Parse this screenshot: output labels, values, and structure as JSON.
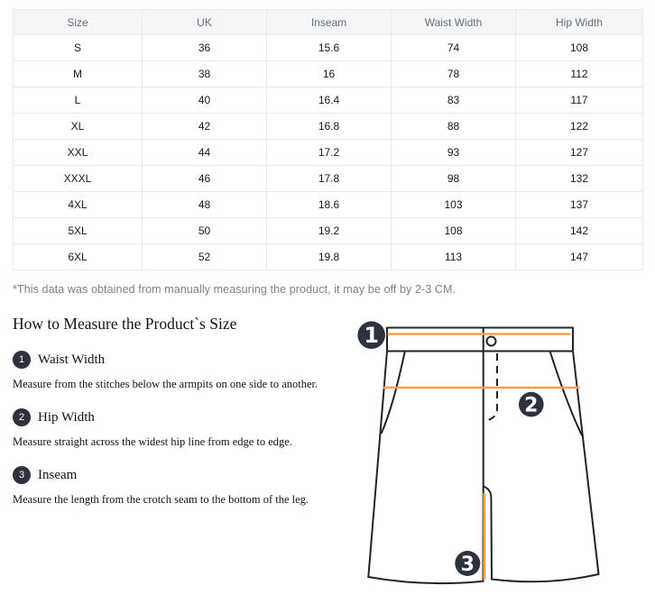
{
  "colors": {
    "accent": "#F2A14D",
    "outline": "#1F2429",
    "badge": "#2C333E",
    "header-bg": "#F4F5F7",
    "header-fg": "#666F7C",
    "border": "#E8EAEE"
  },
  "table": {
    "columns": [
      "Size",
      "UK",
      "Inseam",
      "Waist Width",
      "Hip Width"
    ],
    "rows": [
      [
        "S",
        "36",
        "15.6",
        "74",
        "108"
      ],
      [
        "M",
        "38",
        "16",
        "78",
        "112"
      ],
      [
        "L",
        "40",
        "16.4",
        "83",
        "117"
      ],
      [
        "XL",
        "42",
        "16.8",
        "88",
        "122"
      ],
      [
        "XXL",
        "44",
        "17.2",
        "93",
        "127"
      ],
      [
        "XXXL",
        "46",
        "17.8",
        "98",
        "132"
      ],
      [
        "4XL",
        "48",
        "18.6",
        "103",
        "137"
      ],
      [
        "5XL",
        "50",
        "19.2",
        "108",
        "142"
      ],
      [
        "6XL",
        "52",
        "19.8",
        "113",
        "147"
      ]
    ]
  },
  "note": "*This data was obtained from manually measuring the product, it may be off by 2-3 CM.",
  "measure_section": {
    "heading": "How to Measure the Product`s Size",
    "items": [
      {
        "num": "1",
        "label": "Waist Width",
        "description": "Measure from the stitches below the armpits on one side to another."
      },
      {
        "num": "2",
        "label": "Hip Width",
        "description": "Measure straight across the widest hip line from edge to edge."
      },
      {
        "num": "3",
        "label": "Inseam",
        "description": "Measure the length from the crotch seam to the bottom of the leg."
      }
    ]
  },
  "diagram": {
    "markers": [
      "1",
      "2",
      "3"
    ]
  }
}
